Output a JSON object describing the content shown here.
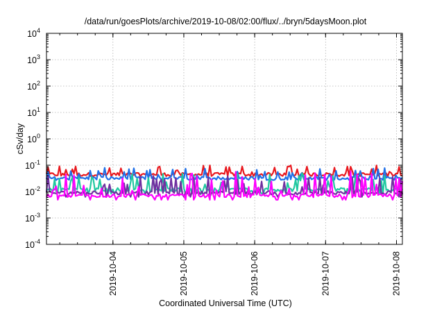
{
  "chart_data": {
    "type": "line",
    "title": "/data/run/goesPlots/archive/2019-10-08/02:00/flux/../bryn/5daysMoon.plot",
    "xlabel": "Coordinated Universal Time (UTC)",
    "ylabel": "cSv/day",
    "yscale": "log",
    "ylim": [
      0.0001,
      10000
    ],
    "xlim": [
      "2019-10-03 01:30",
      "2019-10-08 02:00"
    ],
    "grid": true,
    "x_ticks": [
      "2019-10-04",
      "2019-10-05",
      "2019-10-06",
      "2019-10-07",
      "2019-10-08"
    ],
    "y_ticks": [
      {
        "base": "10",
        "exp": "-4"
      },
      {
        "base": "10",
        "exp": "-3"
      },
      {
        "base": "10",
        "exp": "-2"
      },
      {
        "base": "10",
        "exp": "-1"
      },
      {
        "base": "10",
        "exp": "0"
      },
      {
        "base": "10",
        "exp": "1"
      },
      {
        "base": "10",
        "exp": "2"
      },
      {
        "base": "10",
        "exp": "3"
      },
      {
        "base": "10",
        "exp": "4"
      }
    ],
    "series": [
      {
        "color": "#e8181e",
        "baseline": 0.045,
        "spike": 0.1
      },
      {
        "color": "#1f6fe8",
        "baseline": 0.032,
        "spike": 0.08
      },
      {
        "color": "#20c8a0",
        "baseline": 0.012,
        "spike": 0.05
      },
      {
        "color": "#7030a0",
        "baseline": 0.009,
        "spike": 0.04
      },
      {
        "color": "#ff00ff",
        "baseline": 0.007,
        "spike": 0.06
      }
    ]
  }
}
